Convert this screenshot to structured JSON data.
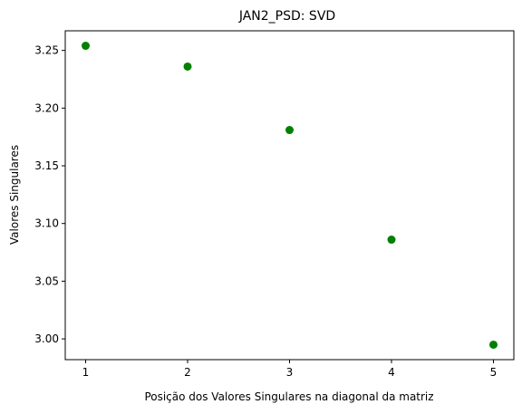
{
  "chart_data": {
    "type": "scatter",
    "title": "JAN2_PSD: SVD",
    "xlabel": "Posição dos Valores Singulares na diagonal da matriz",
    "ylabel": "Valores Singulares",
    "x": [
      1,
      2,
      3,
      4,
      5
    ],
    "y": [
      3.254,
      3.236,
      3.181,
      3.086,
      2.995
    ],
    "xlim": [
      0.8,
      5.2
    ],
    "ylim": [
      2.982,
      3.267
    ],
    "xticks": [
      1,
      2,
      3,
      4,
      5
    ],
    "xtick_labels": [
      "1",
      "2",
      "3",
      "4",
      "5"
    ],
    "yticks": [
      3.0,
      3.05,
      3.1,
      3.15,
      3.2,
      3.25
    ],
    "ytick_labels": [
      "3.00",
      "3.05",
      "3.10",
      "3.15",
      "3.20",
      "3.25"
    ],
    "marker_color": "#008000",
    "grid": false,
    "legend": "none"
  }
}
